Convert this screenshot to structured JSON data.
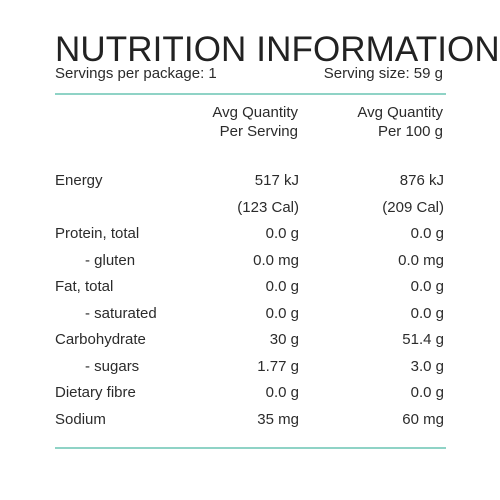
{
  "header": {
    "title": "NUTRITION INFORMATION",
    "servings_per_package": "Servings per package: 1",
    "serving_size": "Serving size: 59 g"
  },
  "columns": {
    "per_serving": [
      "Avg Quantity",
      "Per Serving"
    ],
    "per_100g": [
      "Avg Quantity",
      "Per 100 g"
    ]
  },
  "rows": [
    {
      "label": "Energy",
      "per_serving": "517 kJ",
      "per_100g": "876 kJ",
      "sub": false
    },
    {
      "label": "",
      "per_serving": "(123 Cal)",
      "per_100g": "(209 Cal)",
      "sub": false
    },
    {
      "label": "Protein, total",
      "per_serving": "0.0 g",
      "per_100g": "0.0 g",
      "sub": false
    },
    {
      "label": "- gluten",
      "per_serving": "0.0 mg",
      "per_100g": "0.0 mg",
      "sub": true
    },
    {
      "label": "Fat, total",
      "per_serving": "0.0 g",
      "per_100g": "0.0 g",
      "sub": false
    },
    {
      "label": "- saturated",
      "per_serving": "0.0 g",
      "per_100g": "0.0 g",
      "sub": true
    },
    {
      "label": "Carbohydrate",
      "per_serving": "30 g",
      "per_100g": "51.4 g",
      "sub": false
    },
    {
      "label": "- sugars",
      "per_serving": "1.77 g",
      "per_100g": "3.0 g",
      "sub": true
    },
    {
      "label": "Dietary fibre",
      "per_serving": "0.0 g",
      "per_100g": "0.0 g",
      "sub": false
    },
    {
      "label": "Sodium",
      "per_serving": "35 mg",
      "per_100g": "60 mg",
      "sub": false
    }
  ],
  "colors": {
    "rule": "#8fd3c6",
    "text": "#2b2b2b"
  }
}
